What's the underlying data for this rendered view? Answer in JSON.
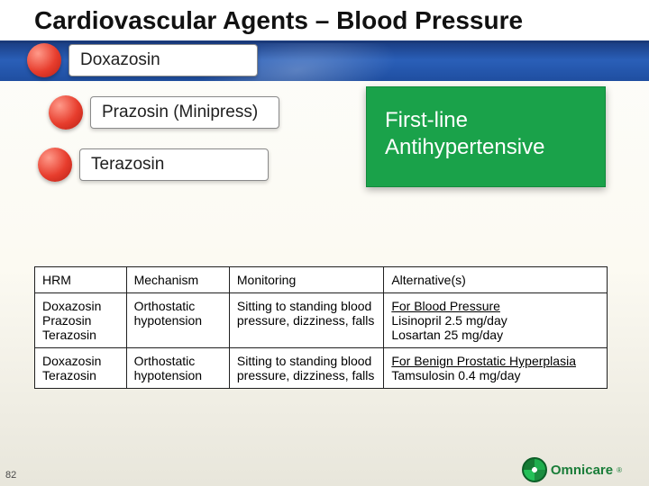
{
  "title": "Cardiovascular Agents – Blood Pressure",
  "pills": {
    "items": [
      {
        "label": "Doxazosin"
      },
      {
        "label": "Prazosin (Minipress)"
      },
      {
        "label": "Terazosin"
      }
    ],
    "dot_color": "#e73d2d",
    "pill_bg": "#ffffff",
    "pill_border": "#8a8a8a",
    "pill_fontsize": 19
  },
  "callout": {
    "line1": "First-line",
    "line2": "Antihypertensive",
    "bg": "#1aa24a",
    "text_color": "#ffffff",
    "fontsize": 24
  },
  "table": {
    "columns": [
      "HRM",
      "Mechanism",
      "Monitoring",
      "Alternative(s)"
    ],
    "col_widths_pct": [
      16,
      18,
      27,
      39
    ],
    "fontsize": 14,
    "border_color": "#202020",
    "rows": [
      {
        "hrm": "Doxazosin\nPrazosin\nTerazosin",
        "mechanism": "Orthostatic hypotension",
        "monitoring": "Sitting to standing blood pressure, dizziness, falls",
        "alt_heading": "For Blood Pressure",
        "alt_body": "Lisinopril 2.5 mg/day\nLosartan 25 mg/day"
      },
      {
        "hrm": "Doxazosin\nTerazosin",
        "mechanism": "Orthostatic hypotension",
        "monitoring": "Sitting to standing blood pressure, dizziness, falls",
        "alt_heading": "For Benign Prostatic Hyperplasia",
        "alt_body": "Tamsulosin 0.4 mg/day"
      }
    ]
  },
  "footer": {
    "page_number": "82",
    "logo_text": "Omnicare",
    "logo_mark_color": "#1fae4e",
    "logo_text_color": "#1a7d39"
  },
  "theme": {
    "title_underline": "#1a3a7a",
    "band_gradient_top": "#1b3f86",
    "band_gradient_mid": "#2a5fb8",
    "slide_bg_top": "#fdfdfb",
    "slide_bg_bottom": "#e8e6db",
    "title_fontsize": 28
  }
}
